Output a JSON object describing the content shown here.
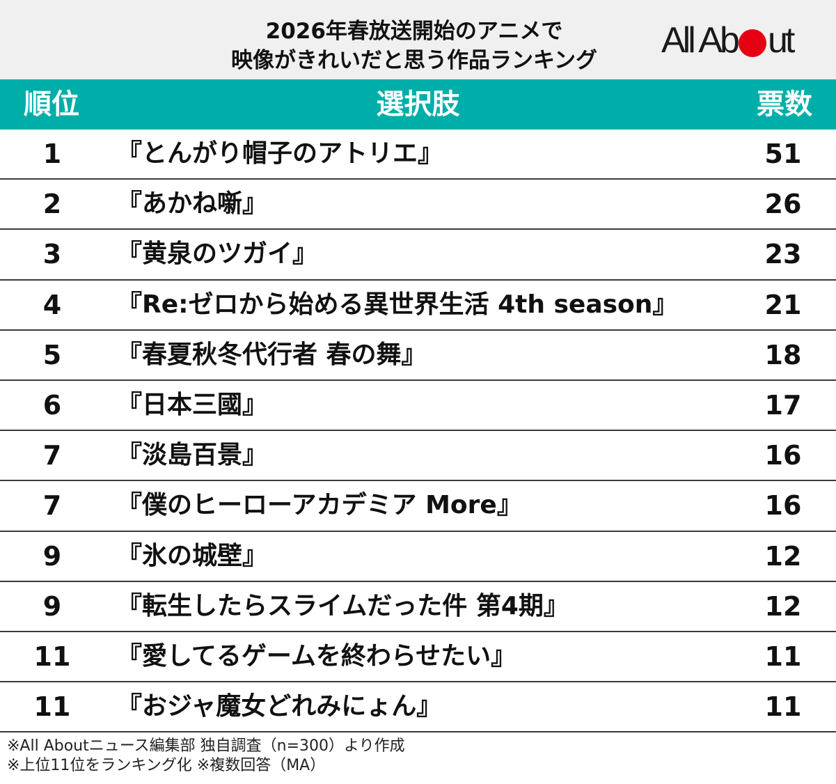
{
  "header": {
    "title_line1": "2026年春放送開始のアニメで",
    "title_line2": "映像がきれいだと思う作品ランキング",
    "logo_text_left": "All Ab",
    "logo_text_right": "ut"
  },
  "columns": {
    "rank": "順位",
    "choice": "選択肢",
    "votes": "票数"
  },
  "rows": [
    {
      "rank": "1",
      "choice": "『とんがり帽子のアトリエ』",
      "votes": "51"
    },
    {
      "rank": "2",
      "choice": "『あかね噺』",
      "votes": "26"
    },
    {
      "rank": "3",
      "choice": "『黄泉のツガイ』",
      "votes": "23"
    },
    {
      "rank": "4",
      "choice": "『Re:ゼロから始める異世界生活 4th season』",
      "votes": "21"
    },
    {
      "rank": "5",
      "choice": "『春夏秋冬代行者 春の舞』",
      "votes": "18"
    },
    {
      "rank": "6",
      "choice": "『日本三國』",
      "votes": "17"
    },
    {
      "rank": "7",
      "choice": "『淡島百景』",
      "votes": "16"
    },
    {
      "rank": "7",
      "choice": "『僕のヒーローアカデミア More』",
      "votes": "16"
    },
    {
      "rank": "9",
      "choice": "『氷の城壁』",
      "votes": "12"
    },
    {
      "rank": "9",
      "choice": "『転生したらスライムだった件 第4期』",
      "votes": "12"
    },
    {
      "rank": "11",
      "choice": "『愛してるゲームを終わらせたい』",
      "votes": "11"
    },
    {
      "rank": "11",
      "choice": "『おジャ魔女どれみにょん』",
      "votes": "11"
    }
  ],
  "notes": {
    "line1": "※All Aboutニュース編集部 独自調査（n=300）より作成",
    "line2": "※上位11位をランキング化 ※複数回答（MA）"
  },
  "colors": {
    "accent": "#00aea9",
    "logo_dot": "#e60012",
    "header_bg": "#f0f0f0"
  }
}
